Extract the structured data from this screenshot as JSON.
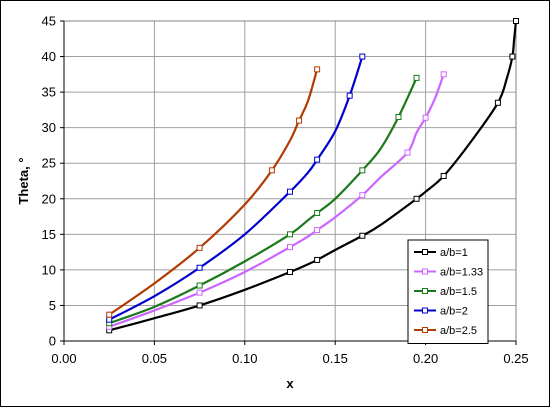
{
  "chart_data": {
    "type": "line",
    "xlabel": "x",
    "ylabel": "Theta, °",
    "xlim": [
      0,
      0.25
    ],
    "ylim": [
      0,
      45
    ],
    "x_ticks": [
      "0.00",
      "0.05",
      "0.10",
      "0.15",
      "0.20",
      "0.25"
    ],
    "y_ticks": [
      "0",
      "5",
      "10",
      "15",
      "20",
      "25",
      "30",
      "35",
      "40",
      "45"
    ],
    "grid": true,
    "legend_position": "bottom-right",
    "series": [
      {
        "name": "a/b=1",
        "color": "#000000",
        "points": [
          [
            0.025,
            1.5
          ],
          [
            0.05,
            3.2
          ],
          [
            0.075,
            5.0
          ],
          [
            0.1,
            7.2
          ],
          [
            0.125,
            9.7
          ],
          [
            0.135,
            10.8
          ],
          [
            0.14,
            11.4
          ],
          [
            0.15,
            12.8
          ],
          [
            0.165,
            14.8
          ],
          [
            0.175,
            16.3
          ],
          [
            0.195,
            20.0
          ],
          [
            0.2,
            21.0
          ],
          [
            0.21,
            23.2
          ],
          [
            0.225,
            28.0
          ],
          [
            0.24,
            33.5
          ],
          [
            0.245,
            37.0
          ],
          [
            0.248,
            40.0
          ],
          [
            0.249,
            42.5
          ],
          [
            0.25,
            45.0
          ]
        ]
      },
      {
        "name": "a/b=1.33",
        "color": "#cc66ff",
        "points": [
          [
            0.025,
            2.0
          ],
          [
            0.05,
            4.3
          ],
          [
            0.075,
            6.8
          ],
          [
            0.1,
            9.7
          ],
          [
            0.125,
            13.2
          ],
          [
            0.135,
            14.7
          ],
          [
            0.14,
            15.6
          ],
          [
            0.15,
            17.4
          ],
          [
            0.165,
            20.5
          ],
          [
            0.175,
            23.0
          ],
          [
            0.19,
            26.5
          ],
          [
            0.195,
            29.3
          ],
          [
            0.2,
            31.4
          ],
          [
            0.205,
            34.0
          ],
          [
            0.21,
            37.5
          ]
        ]
      },
      {
        "name": "a/b=1.5",
        "color": "#1a7a1a",
        "points": [
          [
            0.025,
            2.5
          ],
          [
            0.05,
            4.8
          ],
          [
            0.075,
            7.8
          ],
          [
            0.1,
            11.2
          ],
          [
            0.125,
            15.0
          ],
          [
            0.135,
            17.0
          ],
          [
            0.14,
            18.0
          ],
          [
            0.15,
            20.0
          ],
          [
            0.165,
            24.0
          ],
          [
            0.175,
            27.0
          ],
          [
            0.185,
            31.5
          ],
          [
            0.195,
            37.0
          ]
        ]
      },
      {
        "name": "a/b=2",
        "color": "#0000cc",
        "points": [
          [
            0.025,
            3.0
          ],
          [
            0.05,
            6.3
          ],
          [
            0.075,
            10.3
          ],
          [
            0.1,
            15.0
          ],
          [
            0.125,
            21.0
          ],
          [
            0.135,
            23.7
          ],
          [
            0.14,
            25.5
          ],
          [
            0.15,
            29.5
          ],
          [
            0.158,
            34.5
          ],
          [
            0.165,
            40.0
          ]
        ]
      },
      {
        "name": "a/b=2.5",
        "color": "#b33a00",
        "points": [
          [
            0.025,
            3.7
          ],
          [
            0.05,
            8.1
          ],
          [
            0.075,
            13.1
          ],
          [
            0.1,
            19.2
          ],
          [
            0.115,
            24.0
          ],
          [
            0.125,
            28.2
          ],
          [
            0.13,
            31.0
          ],
          [
            0.135,
            33.8
          ],
          [
            0.14,
            38.2
          ]
        ]
      }
    ]
  }
}
